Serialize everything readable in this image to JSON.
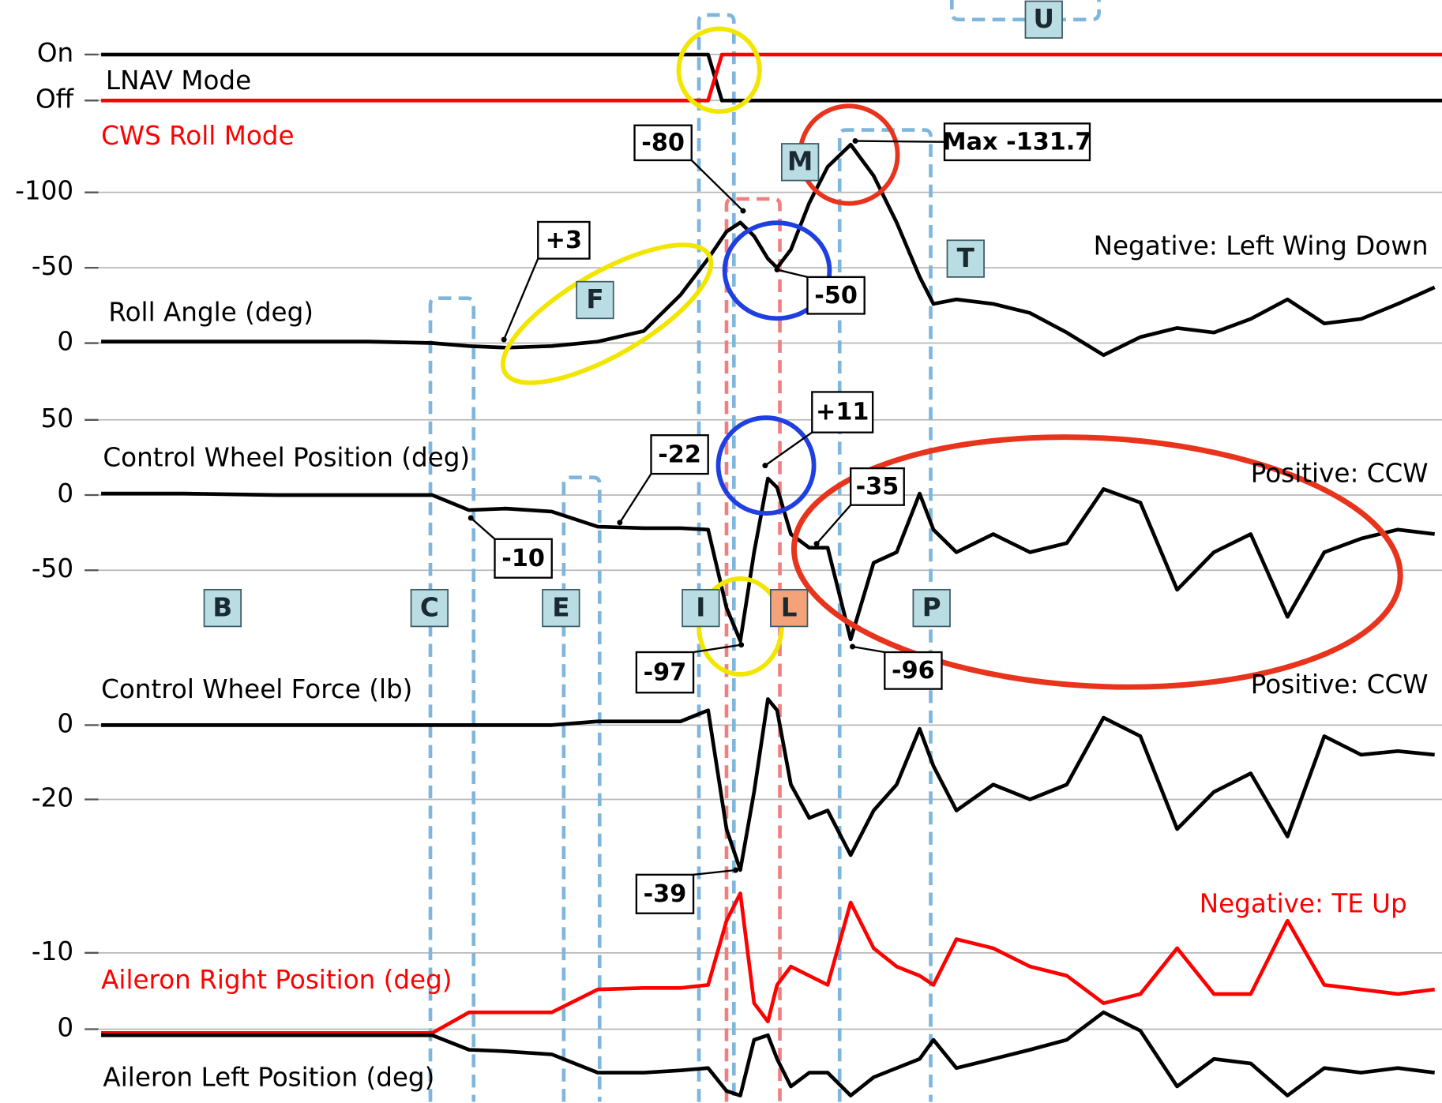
{
  "chart_data": [
    {
      "type": "line",
      "x": [
        0,
        66,
        67.5,
        146
      ],
      "xlim": [
        0,
        146
      ],
      "ylim": [
        -0.3,
        1.3
      ],
      "yticks": [
        {
          "value": 1,
          "label": "On"
        },
        {
          "value": 0,
          "label": "Off"
        }
      ],
      "series": [
        {
          "name": "LNAV Mode",
          "color": "#000000",
          "values": [
            1,
            1,
            0,
            0
          ]
        },
        {
          "name": "CWS Roll Mode",
          "color": "#ff0000",
          "values": [
            0,
            0,
            1,
            1
          ]
        }
      ]
    },
    {
      "type": "line",
      "annotation": "Negative: Left Wing Down",
      "xlim": [
        0,
        146
      ],
      "ylim": [
        30,
        -150
      ],
      "yticks": [
        -100,
        -50,
        0
      ],
      "x": [
        0,
        9,
        19,
        29,
        36,
        40,
        44,
        49,
        54,
        59,
        63,
        66,
        68,
        69.5,
        71,
        72.5,
        73.5,
        75,
        77,
        79,
        81.5,
        84,
        86.5,
        89,
        90.5,
        93,
        97,
        101,
        105,
        109,
        113,
        117,
        121,
        125,
        129,
        133,
        137,
        141,
        145
      ],
      "series": [
        {
          "name": "Roll Angle (deg)",
          "color": "#000000",
          "values": [
            -1,
            -1,
            -1,
            -1,
            0,
            2,
            3,
            2,
            -1,
            -8,
            -32,
            -56,
            -74,
            -80,
            -71,
            -56,
            -50,
            -62,
            -93,
            -117,
            -131.7,
            -111,
            -80,
            -44,
            -26,
            -29,
            -26,
            -20,
            -7,
            8,
            -4,
            -10,
            -7,
            -16,
            -29,
            -13,
            -16,
            -26,
            -37
          ]
        }
      ]
    },
    {
      "type": "line",
      "annotation": "Positive: CCW",
      "xlim": [
        0,
        146
      ],
      "ylim": [
        -110,
        60
      ],
      "yticks": [
        -50,
        0,
        50
      ],
      "x": [
        0,
        9,
        19,
        29,
        36,
        40,
        44,
        49,
        54,
        59,
        63,
        66,
        68,
        69.5,
        71,
        72.5,
        73.5,
        75,
        77,
        79,
        81.5,
        84,
        86.5,
        89,
        90.5,
        93,
        97,
        101,
        105,
        109,
        113,
        117,
        121,
        125,
        129,
        133,
        137,
        141,
        145
      ],
      "series": [
        {
          "name": "Control Wheel Position (deg)",
          "color": "#000000",
          "values": [
            1,
            1,
            0,
            0,
            0,
            -10,
            -9,
            -11,
            -21,
            -22,
            -22,
            -23,
            -75,
            -97,
            -38,
            11,
            5,
            -26,
            -35,
            -35,
            -96,
            -45,
            -38,
            1,
            -23,
            -38,
            -26,
            -38,
            -32,
            4,
            -5,
            -63,
            -38,
            -26,
            -81,
            -38,
            -29,
            -23,
            -26
          ]
        }
      ]
    },
    {
      "type": "line",
      "annotation": "Positive: CCW",
      "xlim": [
        0,
        146
      ],
      "ylim": [
        -42,
        8
      ],
      "yticks": [
        -20,
        0
      ],
      "x": [
        0,
        9,
        19,
        29,
        36,
        40,
        44,
        49,
        54,
        59,
        63,
        66,
        68,
        69.5,
        71,
        72.5,
        73.5,
        75,
        77,
        79,
        81.5,
        84,
        86.5,
        89,
        90.5,
        93,
        97,
        101,
        105,
        109,
        113,
        117,
        121,
        125,
        129,
        133,
        137,
        141,
        145
      ],
      "series": [
        {
          "name": "Control Wheel Force (lb)",
          "color": "#000000",
          "values": [
            0,
            0,
            0,
            0,
            0,
            0,
            0,
            0,
            1,
            1,
            1,
            4,
            -28,
            -39,
            -18,
            7,
            4,
            -16,
            -25,
            -23,
            -35,
            -23,
            -16,
            -1,
            -11,
            -23,
            -16,
            -20,
            -16,
            2,
            -3,
            -28,
            -18,
            -13,
            -30,
            -3,
            -8,
            -7,
            -8
          ]
        }
      ]
    },
    {
      "type": "line",
      "annotation": "Negative: TE Up",
      "xlim": [
        0,
        146
      ],
      "ylim": [
        10,
        -20
      ],
      "yticks": [
        -10,
        0
      ],
      "x": [
        0,
        9,
        19,
        29,
        36,
        40,
        44,
        49,
        54,
        59,
        63,
        66,
        68,
        69.5,
        71,
        72.5,
        73.5,
        75,
        77,
        79,
        81.5,
        84,
        86.5,
        89,
        90.5,
        93,
        97,
        101,
        105,
        109,
        113,
        117,
        121,
        125,
        129,
        133,
        137,
        141,
        145
      ],
      "series": [
        {
          "name": "Aileron Right Position (deg)",
          "color": "#ff0000",
          "values": [
            0.5,
            0.5,
            0.5,
            0.5,
            0.5,
            -2.2,
            -2.2,
            -2.2,
            -5.2,
            -5.4,
            -5.4,
            -5.8,
            -14.2,
            -17.8,
            -3.4,
            -1,
            -5.8,
            -8.2,
            -7,
            -5.8,
            -16.6,
            -10.6,
            -8.2,
            -7,
            -5.8,
            -11.8,
            -10.6,
            -8.2,
            -7,
            -3.4,
            -4.6,
            -10.6,
            -4.6,
            -4.6,
            -14.2,
            -5.8,
            -5.2,
            -4.6,
            -5.2
          ]
        },
        {
          "name": "Aileron Left Position (deg)",
          "color": "#000000",
          "values": [
            0.8,
            0.8,
            0.8,
            0.8,
            0.8,
            2.7,
            2.9,
            3.3,
            5.7,
            5.7,
            5.4,
            5.1,
            8.1,
            8.7,
            1.4,
            0.8,
            3.9,
            7.5,
            5.7,
            5.7,
            8.7,
            6.3,
            5.1,
            3.9,
            1.4,
            5.1,
            3.9,
            2.7,
            1.4,
            -2.2,
            0.2,
            7.5,
            3.9,
            4.5,
            8.7,
            5.1,
            5.7,
            5.1,
            5.7
          ]
        }
      ]
    }
  ],
  "annotations": [
    "-80",
    "Max -131.7",
    "+3",
    "-50",
    "+11",
    "-22",
    "-10",
    "-35",
    "-97",
    "-96",
    "-39"
  ],
  "markers": [
    "B",
    "C",
    "E",
    "F",
    "I",
    "L",
    "M",
    "P",
    "T",
    "U"
  ]
}
